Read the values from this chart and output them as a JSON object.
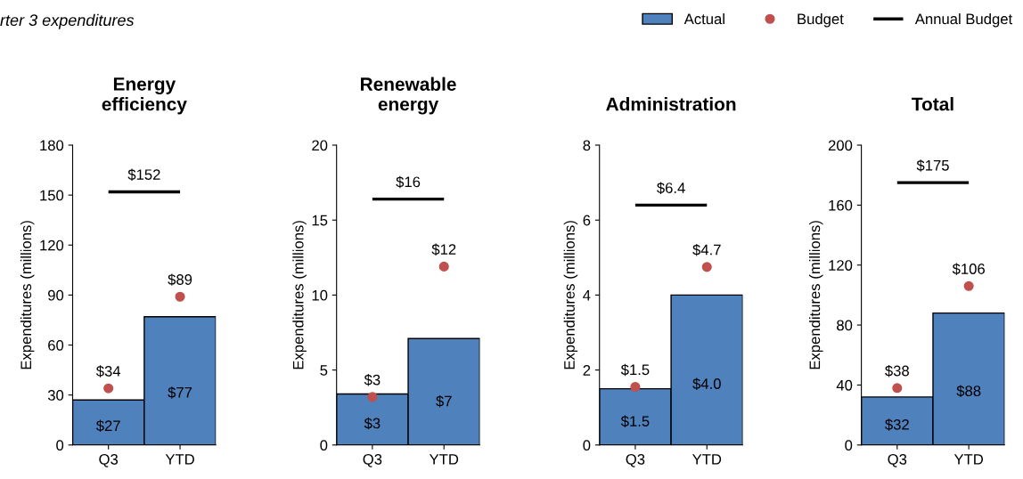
{
  "chart_data": [
    {
      "type": "bar",
      "title": "Energy\nefficiency",
      "ylabel": "Expenditures (millions)",
      "categories": [
        "Q3",
        "YTD"
      ],
      "ylim": [
        0,
        180
      ],
      "yticks": [
        0,
        30,
        60,
        90,
        120,
        150,
        180
      ],
      "annotations": [
        "rter 3 expenditures"
      ],
      "series": [
        {
          "color": "#4f81bd",
          "values": [
            27,
            77
          ],
          "value_labels": [
            "$27",
            "$77"
          ]
        },
        {
          "type": "scatter",
          "color": "#c0504d",
          "values": [
            34,
            89
          ],
          "value_labels": [
            "$34",
            "$89"
          ]
        },
        {
          "type": "line",
          "color": "#000000",
          "values": [
            152,
            152
          ],
          "value_labels": [
            "$152",
            null
          ]
        }
      ]
    },
    {
      "type": "bar",
      "title": "Renewable\nenergy",
      "ylabel": "Expenditures (millions)",
      "categories": [
        "Q3",
        "YTD"
      ],
      "ylim": [
        0,
        20
      ],
      "yticks": [
        0,
        5,
        10,
        15,
        20
      ],
      "series": [
        {
          "color": "#4f81bd",
          "values": [
            3.4,
            7.1
          ],
          "value_labels": [
            "$3",
            "$7"
          ]
        },
        {
          "type": "scatter",
          "color": "#c0504d",
          "values": [
            3.2,
            11.9
          ],
          "value_labels": [
            "$3",
            "$12"
          ]
        },
        {
          "type": "line",
          "color": "#000000",
          "values": [
            16.4,
            16.4
          ],
          "value_labels": [
            "$16",
            null
          ]
        }
      ]
    },
    {
      "type": "bar",
      "title": "Administration",
      "ylabel": "Expenditures (millions)",
      "categories": [
        "Q3",
        "YTD"
      ],
      "ylim": [
        0,
        8
      ],
      "yticks": [
        0,
        2,
        4,
        6,
        8
      ],
      "series": [
        {
          "color": "#4f81bd",
          "values": [
            1.5,
            4.0
          ],
          "value_labels": [
            "$1.5",
            "$4.0"
          ]
        },
        {
          "type": "scatter",
          "color": "#c0504d",
          "values": [
            1.55,
            4.75
          ],
          "value_labels": [
            "$1.5",
            "$4.7"
          ]
        },
        {
          "type": "line",
          "color": "#000000",
          "values": [
            6.4,
            6.4
          ],
          "value_labels": [
            "$6.4",
            null
          ]
        }
      ]
    },
    {
      "type": "bar",
      "title": "Total",
      "ylabel": "Expenditures (millions)",
      "categories": [
        "Q3",
        "YTD"
      ],
      "ylim": [
        0,
        200
      ],
      "yticks": [
        0,
        40,
        80,
        120,
        160,
        200
      ],
      "legend": "top left",
      "series": [
        {
          "name": "Actual",
          "color": "#4f81bd",
          "values": [
            32,
            88
          ],
          "value_labels": [
            "$32",
            "$88"
          ]
        },
        {
          "type": "scatter",
          "name": "Budget",
          "color": "#c0504d",
          "values": [
            38,
            106
          ],
          "value_labels": [
            "$38",
            "$106"
          ]
        },
        {
          "type": "line",
          "name": "Annual Budget",
          "color": "#000000",
          "values": [
            175,
            175
          ],
          "value_labels": [
            "$175",
            null
          ]
        }
      ]
    }
  ]
}
